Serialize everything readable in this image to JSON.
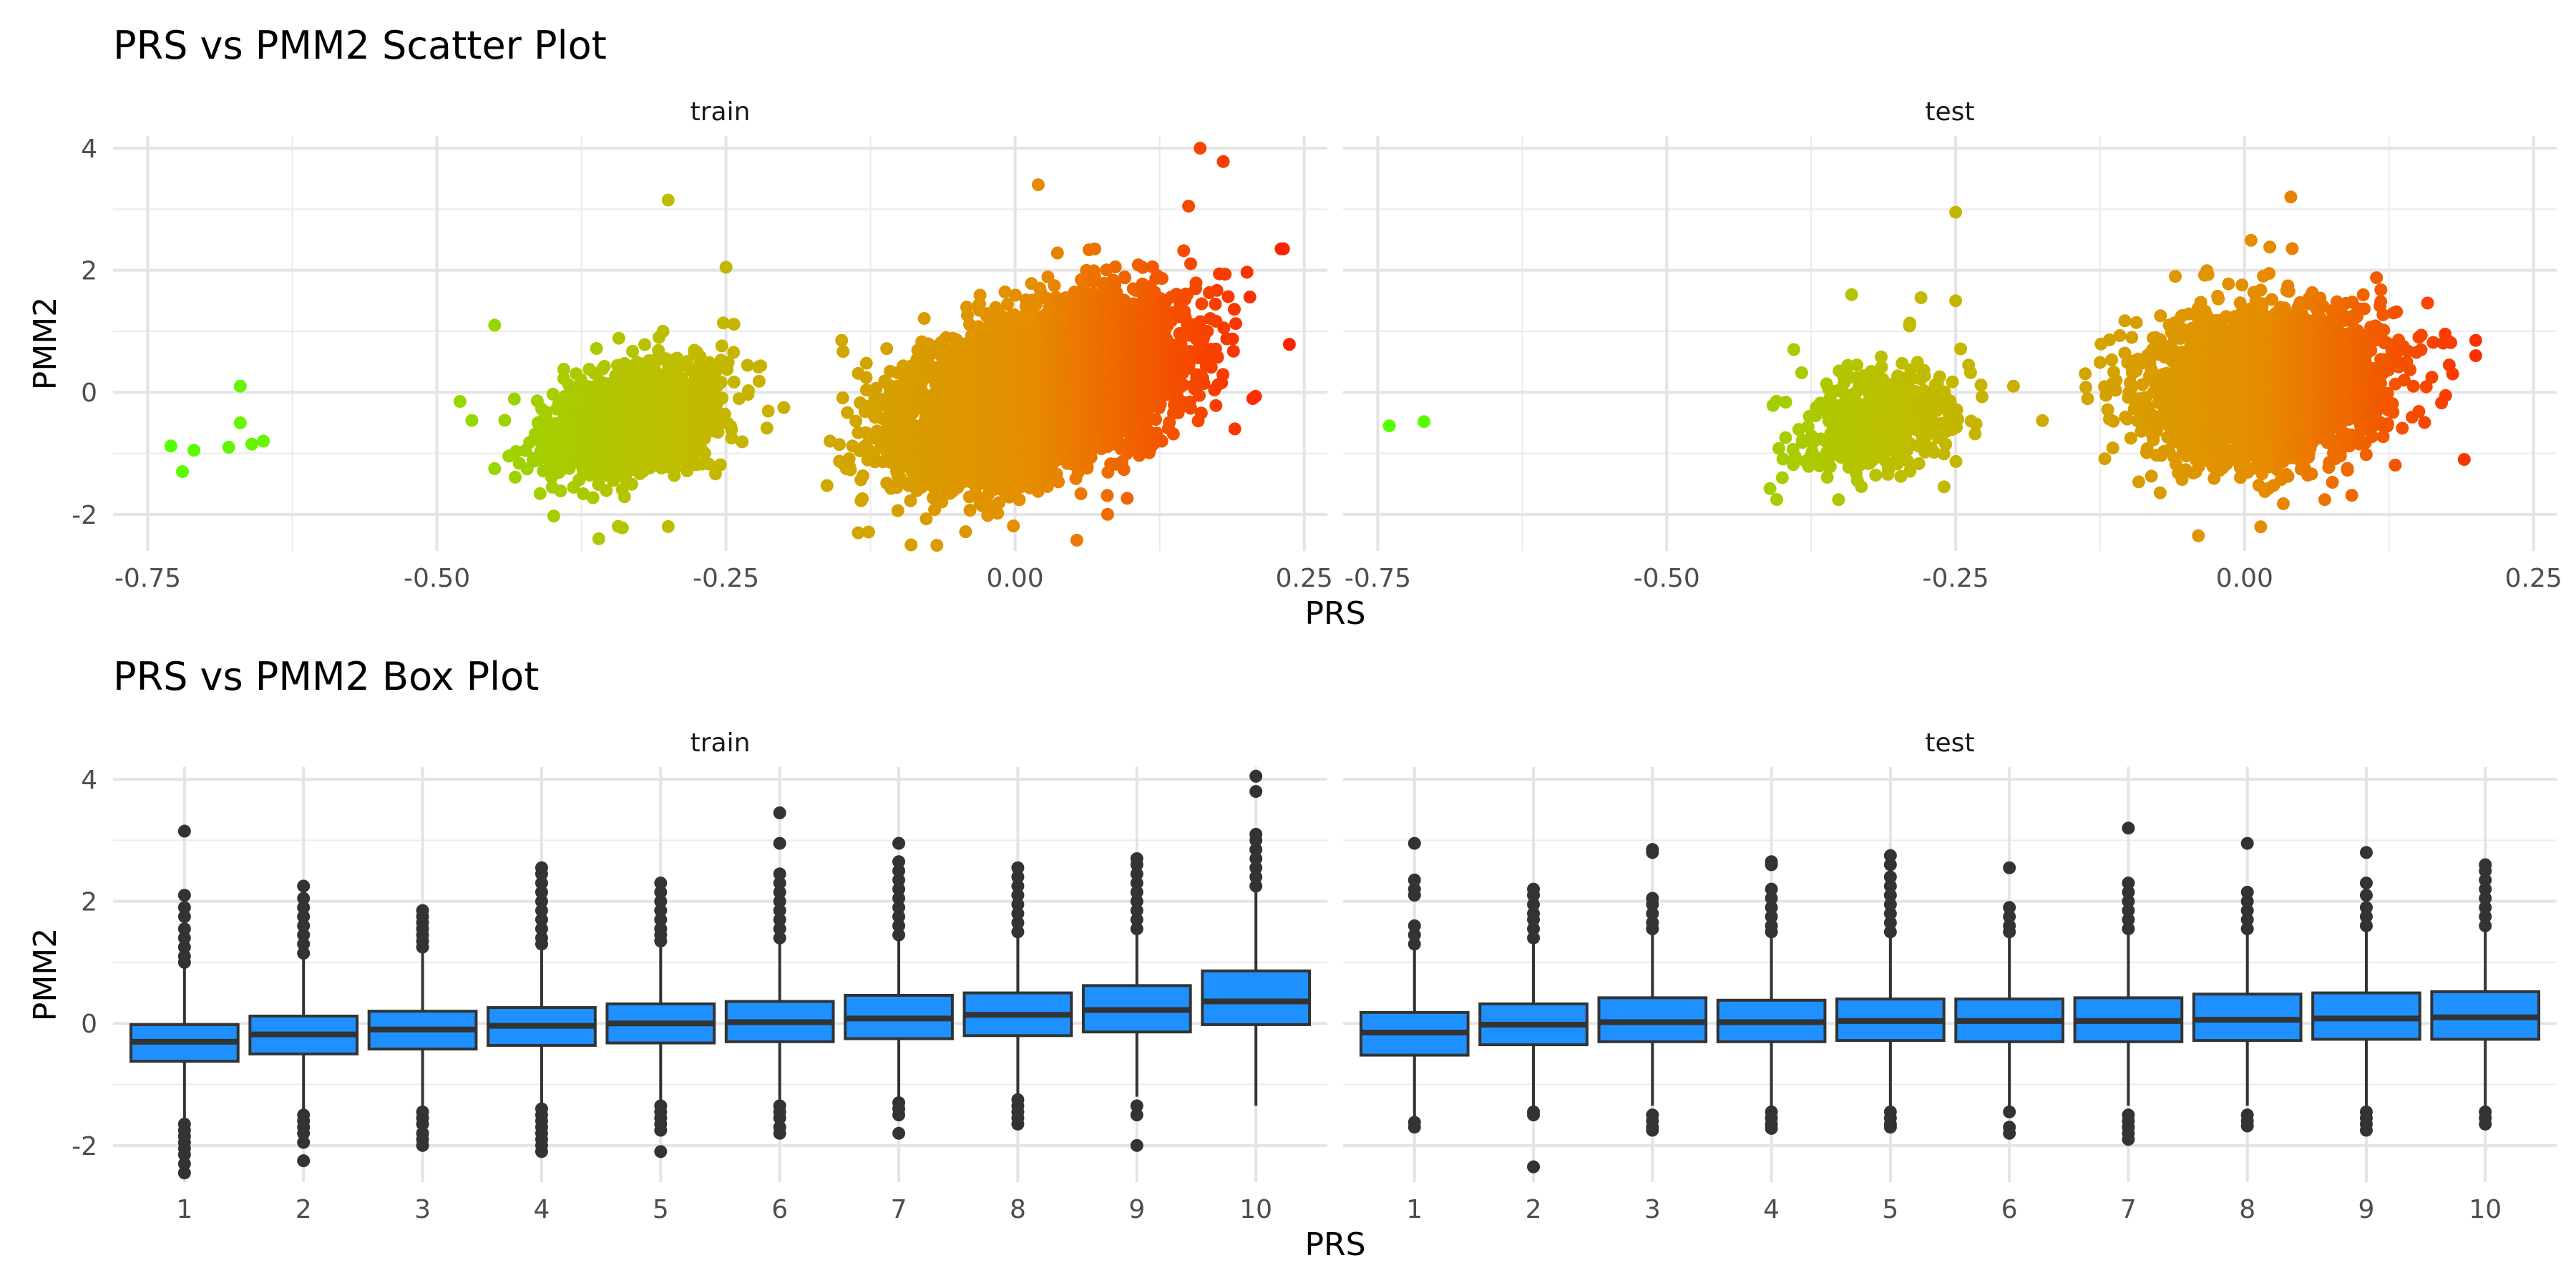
{
  "chart_data": [
    {
      "type": "scatter",
      "title": "PRS vs PMM2 Scatter Plot",
      "xlabel": "PRS",
      "ylabel": "PMM2",
      "xlim": [
        -0.78,
        0.27
      ],
      "ylim": [
        -2.6,
        4.2
      ],
      "grid": true,
      "legend": "none",
      "color_scale": {
        "low": "#55ff00",
        "high": "#ff2200",
        "low_value": -0.73,
        "high_value": 0.23
      },
      "x_ticks": [
        -0.75,
        -0.5,
        -0.25,
        0.0,
        0.25
      ],
      "x_tick_labels": [
        "-0.75",
        "-0.50",
        "-0.25",
        "0.00",
        "0.25"
      ],
      "y_ticks": [
        -2,
        0,
        2,
        4
      ],
      "y_tick_labels": [
        "-2",
        "0",
        "2",
        "4"
      ],
      "panels": [
        {
          "strip": "train",
          "clusters": [
            {
              "cx": -0.69,
              "cy": -0.8,
              "sx": 0.025,
              "sy": 0.3,
              "rho": 0.0,
              "n": 8,
              "points": [
                [
                  -0.73,
                  -0.88
                ],
                [
                  -0.71,
                  -0.95
                ],
                [
                  -0.72,
                  -1.3
                ],
                [
                  -0.67,
                  0.1
                ],
                [
                  -0.67,
                  -0.5
                ],
                [
                  -0.68,
                  -0.9
                ],
                [
                  -0.66,
                  -0.85
                ],
                [
                  -0.65,
                  -0.8
                ]
              ]
            },
            {
              "cx": -0.33,
              "cy": -0.45,
              "sx": 0.035,
              "sy": 0.45,
              "rho": 0.35,
              "n": 1700,
              "points": [
                [
                  -0.3,
                  3.15
                ],
                [
                  -0.25,
                  2.05
                ],
                [
                  -0.45,
                  1.1
                ],
                [
                  -0.48,
                  -0.15
                ],
                [
                  -0.36,
                  -2.4
                ],
                [
                  -0.3,
                  -2.2
                ],
                [
                  -0.2,
                  -0.25
                ],
                [
                  -0.45,
                  -1.25
                ]
              ]
            },
            {
              "cx": 0.02,
              "cy": 0.0,
              "sx": 0.055,
              "sy": 0.65,
              "rho": 0.45,
              "n": 7000,
              "points": [
                [
                  0.16,
                  4.0
                ],
                [
                  0.18,
                  3.78
                ],
                [
                  0.23,
                  2.35
                ],
                [
                  0.02,
                  3.4
                ],
                [
                  0.15,
                  3.05
                ],
                [
                  -0.09,
                  -2.5
                ],
                [
                  0.08,
                  -2.0
                ],
                [
                  -0.15,
                  0.85
                ],
                [
                  -0.16,
                  -0.8
                ],
                [
                  0.19,
                  -0.6
                ]
              ]
            }
          ]
        },
        {
          "strip": "test",
          "clusters": [
            {
              "cx": -0.72,
              "cy": -0.5,
              "sx": 0.01,
              "sy": 0.05,
              "rho": 0.0,
              "n": 2,
              "points": [
                [
                  -0.74,
                  -0.55
                ],
                [
                  -0.71,
                  -0.48
                ]
              ]
            },
            {
              "cx": -0.32,
              "cy": -0.45,
              "sx": 0.035,
              "sy": 0.45,
              "rho": 0.3,
              "n": 450,
              "points": [
                [
                  -0.25,
                  2.95
                ],
                [
                  -0.34,
                  1.6
                ],
                [
                  -0.28,
                  1.55
                ],
                [
                  -0.25,
                  1.5
                ],
                [
                  -0.2,
                  0.1
                ],
                [
                  -0.4,
                  -1.4
                ],
                [
                  -0.26,
                  -1.55
                ],
                [
                  -0.39,
                  0.7
                ]
              ]
            },
            {
              "cx": 0.02,
              "cy": 0.1,
              "sx": 0.05,
              "sy": 0.6,
              "rho": 0.1,
              "n": 2800,
              "points": [
                [
                  -0.04,
                  -2.35
                ],
                [
                  0.04,
                  3.2
                ],
                [
                  0.2,
                  0.85
                ],
                [
                  0.2,
                  0.6
                ],
                [
                  0.19,
                  -1.1
                ],
                [
                  0.18,
                  0.3
                ],
                [
                  -0.1,
                  0.0
                ],
                [
                  -0.06,
                  1.9
                ]
              ]
            }
          ]
        }
      ]
    },
    {
      "type": "box",
      "title": "PRS vs PMM2 Box Plot",
      "xlabel": "PRS",
      "ylabel": "PMM2",
      "ylim": [
        -2.6,
        4.2
      ],
      "grid": true,
      "legend": "none",
      "fill": "#1e90ff",
      "stroke": "#333333",
      "categories": [
        "1",
        "2",
        "3",
        "4",
        "5",
        "6",
        "7",
        "8",
        "9",
        "10"
      ],
      "y_ticks": [
        -2,
        0,
        2,
        4
      ],
      "y_tick_labels": [
        "-2",
        "0",
        "2",
        "4"
      ],
      "panels": [
        {
          "strip": "train",
          "boxes": [
            {
              "q1": -0.62,
              "median": -0.3,
              "q3": -0.02,
              "whisker_low": -1.55,
              "whisker_high": 0.92,
              "outliers_low": [
                -1.65,
                -1.75,
                -1.85,
                -1.95,
                -2.05,
                -2.15,
                -2.3,
                -2.45
              ],
              "outliers_high": [
                1.0,
                1.1,
                1.25,
                1.4,
                1.55,
                1.75,
                1.9,
                2.1,
                3.15
              ]
            },
            {
              "q1": -0.5,
              "median": -0.18,
              "q3": 0.12,
              "whisker_low": -1.4,
              "whisker_high": 1.05,
              "outliers_low": [
                -1.5,
                -1.6,
                -1.7,
                -1.8,
                -1.95,
                -2.25
              ],
              "outliers_high": [
                1.15,
                1.3,
                1.45,
                1.6,
                1.75,
                1.9,
                2.05,
                2.25
              ]
            },
            {
              "q1": -0.42,
              "median": -0.1,
              "q3": 0.2,
              "whisker_low": -1.35,
              "whisker_high": 1.15,
              "outliers_low": [
                -1.45,
                -1.55,
                -1.65,
                -1.8,
                -1.9,
                -2.0
              ],
              "outliers_high": [
                1.25,
                1.35,
                1.45,
                1.55,
                1.65,
                1.75,
                1.85
              ]
            },
            {
              "q1": -0.36,
              "median": -0.04,
              "q3": 0.26,
              "whisker_low": -1.3,
              "whisker_high": 1.2,
              "outliers_low": [
                -1.4,
                -1.5,
                -1.6,
                -1.7,
                -1.8,
                -1.9,
                -2.0,
                -2.1
              ],
              "outliers_high": [
                1.3,
                1.4,
                1.55,
                1.7,
                1.85,
                2.0,
                2.15,
                2.3,
                2.45,
                2.55
              ]
            },
            {
              "q1": -0.32,
              "median": 0.0,
              "q3": 0.32,
              "whisker_low": -1.25,
              "whisker_high": 1.25,
              "outliers_low": [
                -1.35,
                -1.45,
                -1.55,
                -1.65,
                -1.75,
                -2.1
              ],
              "outliers_high": [
                1.35,
                1.45,
                1.55,
                1.7,
                1.85,
                2.0,
                2.15,
                2.3
              ]
            },
            {
              "q1": -0.3,
              "median": 0.02,
              "q3": 0.36,
              "whisker_low": -1.25,
              "whisker_high": 1.3,
              "outliers_low": [
                -1.35,
                -1.45,
                -1.55,
                -1.7,
                -1.8
              ],
              "outliers_high": [
                1.4,
                1.55,
                1.7,
                1.85,
                2.0,
                2.15,
                2.3,
                2.45,
                2.95,
                3.45
              ]
            },
            {
              "q1": -0.25,
              "median": 0.08,
              "q3": 0.46,
              "whisker_low": -1.2,
              "whisker_high": 1.35,
              "outliers_low": [
                -1.3,
                -1.4,
                -1.5,
                -1.8
              ],
              "outliers_high": [
                1.45,
                1.6,
                1.75,
                1.9,
                2.05,
                2.2,
                2.35,
                2.5,
                2.65,
                2.95
              ]
            },
            {
              "q1": -0.2,
              "median": 0.14,
              "q3": 0.5,
              "whisker_low": -1.15,
              "whisker_high": 1.4,
              "outliers_low": [
                -1.25,
                -1.35,
                -1.45,
                -1.55,
                -1.65
              ],
              "outliers_high": [
                1.5,
                1.65,
                1.8,
                1.95,
                2.1,
                2.25,
                2.4,
                2.55
              ]
            },
            {
              "q1": -0.14,
              "median": 0.22,
              "q3": 0.62,
              "whisker_low": -1.2,
              "whisker_high": 1.45,
              "outliers_low": [
                -1.35,
                -1.5,
                -2.0
              ],
              "outliers_high": [
                1.55,
                1.7,
                1.85,
                2.0,
                2.15,
                2.3,
                2.45,
                2.6,
                2.7
              ]
            },
            {
              "q1": -0.02,
              "median": 0.36,
              "q3": 0.86,
              "whisker_low": -1.35,
              "whisker_high": 2.15,
              "outliers_low": [],
              "outliers_high": [
                2.25,
                2.4,
                2.55,
                2.7,
                2.85,
                3.0,
                3.1,
                3.8,
                4.05
              ]
            }
          ]
        },
        {
          "strip": "test",
          "boxes": [
            {
              "q1": -0.52,
              "median": -0.15,
              "q3": 0.18,
              "whisker_low": -1.55,
              "whisker_high": 1.2,
              "outliers_low": [
                -1.62,
                -1.7
              ],
              "outliers_high": [
                1.3,
                1.45,
                1.6,
                2.1,
                2.2,
                2.35,
                2.95
              ]
            },
            {
              "q1": -0.35,
              "median": -0.02,
              "q3": 0.32,
              "whisker_low": -1.35,
              "whisker_high": 1.3,
              "outliers_low": [
                -1.45,
                -1.5,
                -2.35
              ],
              "outliers_high": [
                1.4,
                1.55,
                1.7,
                1.8,
                1.95,
                2.1,
                2.2
              ]
            },
            {
              "q1": -0.3,
              "median": 0.02,
              "q3": 0.42,
              "whisker_low": -1.35,
              "whisker_high": 1.45,
              "outliers_low": [
                -1.5,
                -1.6,
                -1.7,
                -1.75
              ],
              "outliers_high": [
                1.55,
                1.65,
                1.8,
                1.95,
                2.05,
                2.8,
                2.85
              ]
            },
            {
              "q1": -0.3,
              "median": 0.02,
              "q3": 0.38,
              "whisker_low": -1.35,
              "whisker_high": 1.4,
              "outliers_low": [
                -1.45,
                -1.55,
                -1.65,
                -1.72
              ],
              "outliers_high": [
                1.5,
                1.6,
                1.75,
                1.9,
                2.05,
                2.2,
                2.6,
                2.65
              ]
            },
            {
              "q1": -0.28,
              "median": 0.04,
              "q3": 0.4,
              "whisker_low": -1.35,
              "whisker_high": 1.4,
              "outliers_low": [
                -1.45,
                -1.55,
                -1.65,
                -1.7
              ],
              "outliers_high": [
                1.5,
                1.65,
                1.8,
                1.95,
                2.1,
                2.25,
                2.4,
                2.6,
                2.75
              ]
            },
            {
              "q1": -0.3,
              "median": 0.04,
              "q3": 0.4,
              "whisker_low": -1.35,
              "whisker_high": 1.4,
              "outliers_low": [
                -1.45,
                -1.7,
                -1.8
              ],
              "outliers_high": [
                1.5,
                1.6,
                1.75,
                1.9,
                2.55
              ]
            },
            {
              "q1": -0.3,
              "median": 0.04,
              "q3": 0.42,
              "whisker_low": -1.35,
              "whisker_high": 1.45,
              "outliers_low": [
                -1.5,
                -1.6,
                -1.7,
                -1.8,
                -1.9
              ],
              "outliers_high": [
                1.55,
                1.7,
                1.85,
                2.0,
                2.15,
                2.3,
                3.2
              ]
            },
            {
              "q1": -0.28,
              "median": 0.06,
              "q3": 0.48,
              "whisker_low": -1.35,
              "whisker_high": 1.45,
              "outliers_low": [
                -1.5,
                -1.6,
                -1.68
              ],
              "outliers_high": [
                1.55,
                1.7,
                1.85,
                2.0,
                2.15,
                2.95
              ]
            },
            {
              "q1": -0.26,
              "median": 0.08,
              "q3": 0.5,
              "whisker_low": -1.35,
              "whisker_high": 1.5,
              "outliers_low": [
                -1.45,
                -1.55,
                -1.65,
                -1.75
              ],
              "outliers_high": [
                1.6,
                1.75,
                1.9,
                2.1,
                2.3,
                2.8
              ]
            },
            {
              "q1": -0.26,
              "median": 0.1,
              "q3": 0.52,
              "whisker_low": -1.35,
              "whisker_high": 1.5,
              "outliers_low": [
                -1.45,
                -1.55,
                -1.65
              ],
              "outliers_high": [
                1.6,
                1.75,
                1.9,
                2.05,
                2.2,
                2.35,
                2.5,
                2.6
              ]
            }
          ]
        }
      ]
    }
  ]
}
